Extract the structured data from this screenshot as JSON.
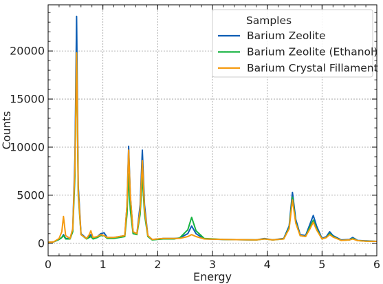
{
  "chart_data": {
    "type": "line",
    "title": "",
    "xlabel": "Energy",
    "ylabel": "Counts",
    "xlim": [
      0,
      6
    ],
    "ylim": [
      -1300,
      24800
    ],
    "x_ticks": [
      0,
      1,
      2,
      3,
      4,
      5,
      6
    ],
    "y_ticks": [
      0,
      5000,
      10000,
      15000,
      20000
    ],
    "grid": true,
    "legend": {
      "title": "Samples",
      "placement": "top-right"
    },
    "colors": {
      "Barium Zeolite": "#0c5db4",
      "Barium Zeolite (Ethanol)": "#16b340",
      "Barium Crystal Fillament": "#f59a0e"
    },
    "series": [
      {
        "name": "Barium Zeolite",
        "x": [
          0,
          0.1,
          0.2,
          0.25,
          0.28,
          0.32,
          0.4,
          0.45,
          0.49,
          0.52,
          0.55,
          0.6,
          0.7,
          0.75,
          0.78,
          0.82,
          0.9,
          0.96,
          1.02,
          1.08,
          1.2,
          1.4,
          1.44,
          1.47,
          1.5,
          1.55,
          1.62,
          1.68,
          1.72,
          1.76,
          1.82,
          1.9,
          2.1,
          2.3,
          2.4,
          2.55,
          2.62,
          2.7,
          2.85,
          3.2,
          3.8,
          3.95,
          4.1,
          4.3,
          4.4,
          4.46,
          4.52,
          4.6,
          4.7,
          4.78,
          4.84,
          4.9,
          5.0,
          5.08,
          5.14,
          5.2,
          5.35,
          5.5,
          5.56,
          5.65,
          5.8,
          6.0
        ],
        "y": [
          100,
          150,
          400,
          600,
          900,
          500,
          500,
          1500,
          9000,
          23600,
          6000,
          1000,
          500,
          700,
          900,
          500,
          700,
          1000,
          1100,
          600,
          600,
          800,
          4000,
          10100,
          5000,
          1200,
          1000,
          4000,
          9700,
          4000,
          800,
          400,
          500,
          500,
          550,
          1000,
          1800,
          1000,
          450,
          400,
          350,
          500,
          350,
          500,
          1800,
          5300,
          2500,
          900,
          800,
          2000,
          2900,
          1800,
          500,
          700,
          1200,
          800,
          350,
          400,
          600,
          300,
          250,
          200
        ]
      },
      {
        "name": "Barium Zeolite (Ethanol)",
        "x": [
          0,
          0.1,
          0.2,
          0.25,
          0.28,
          0.32,
          0.4,
          0.45,
          0.49,
          0.52,
          0.55,
          0.6,
          0.7,
          0.75,
          0.78,
          0.82,
          0.9,
          0.96,
          1.02,
          1.08,
          1.2,
          1.4,
          1.44,
          1.47,
          1.5,
          1.55,
          1.62,
          1.68,
          1.72,
          1.76,
          1.82,
          1.9,
          2.1,
          2.3,
          2.4,
          2.55,
          2.62,
          2.7,
          2.85,
          3.2,
          3.8,
          3.95,
          4.1,
          4.3,
          4.4,
          4.46,
          4.52,
          4.6,
          4.7,
          4.78,
          4.84,
          4.9,
          5.0,
          5.08,
          5.14,
          5.2,
          5.35,
          5.5,
          5.56,
          5.65,
          5.8,
          6.0
        ],
        "y": [
          100,
          150,
          400,
          600,
          800,
          450,
          450,
          1200,
          7000,
          19800,
          5000,
          900,
          450,
          600,
          700,
          450,
          600,
          800,
          800,
          500,
          500,
          700,
          3000,
          7200,
          3500,
          1000,
          900,
          3000,
          7000,
          3000,
          700,
          350,
          450,
          450,
          550,
          1400,
          2700,
          1300,
          500,
          400,
          350,
          450,
          350,
          450,
          1600,
          4800,
          2200,
          800,
          700,
          1700,
          2400,
          1500,
          450,
          600,
          1000,
          700,
          300,
          350,
          500,
          280,
          220,
          200
        ]
      },
      {
        "name": "Barium Crystal Fillament",
        "x": [
          0,
          0.1,
          0.2,
          0.25,
          0.28,
          0.32,
          0.4,
          0.45,
          0.49,
          0.52,
          0.55,
          0.6,
          0.7,
          0.75,
          0.78,
          0.82,
          0.9,
          0.96,
          1.02,
          1.08,
          1.2,
          1.4,
          1.44,
          1.47,
          1.5,
          1.55,
          1.62,
          1.68,
          1.72,
          1.76,
          1.82,
          1.9,
          2.1,
          2.3,
          2.4,
          2.55,
          2.62,
          2.7,
          2.85,
          3.2,
          3.8,
          3.95,
          4.1,
          4.3,
          4.4,
          4.46,
          4.52,
          4.6,
          4.7,
          4.78,
          4.84,
          4.9,
          5.0,
          5.08,
          5.14,
          5.2,
          5.35,
          5.5,
          5.56,
          5.65,
          5.8,
          6.0
        ],
        "y": [
          100,
          150,
          500,
          1200,
          2800,
          800,
          500,
          1500,
          8000,
          19800,
          5500,
          900,
          500,
          900,
          1300,
          600,
          700,
          900,
          800,
          600,
          600,
          800,
          4000,
          9700,
          5000,
          1200,
          1000,
          3500,
          8600,
          3500,
          800,
          400,
          500,
          500,
          500,
          700,
          900,
          700,
          450,
          400,
          350,
          450,
          350,
          450,
          1500,
          4500,
          2100,
          800,
          700,
          1500,
          2200,
          1400,
          450,
          600,
          900,
          650,
          300,
          350,
          450,
          280,
          220,
          200
        ]
      }
    ]
  }
}
